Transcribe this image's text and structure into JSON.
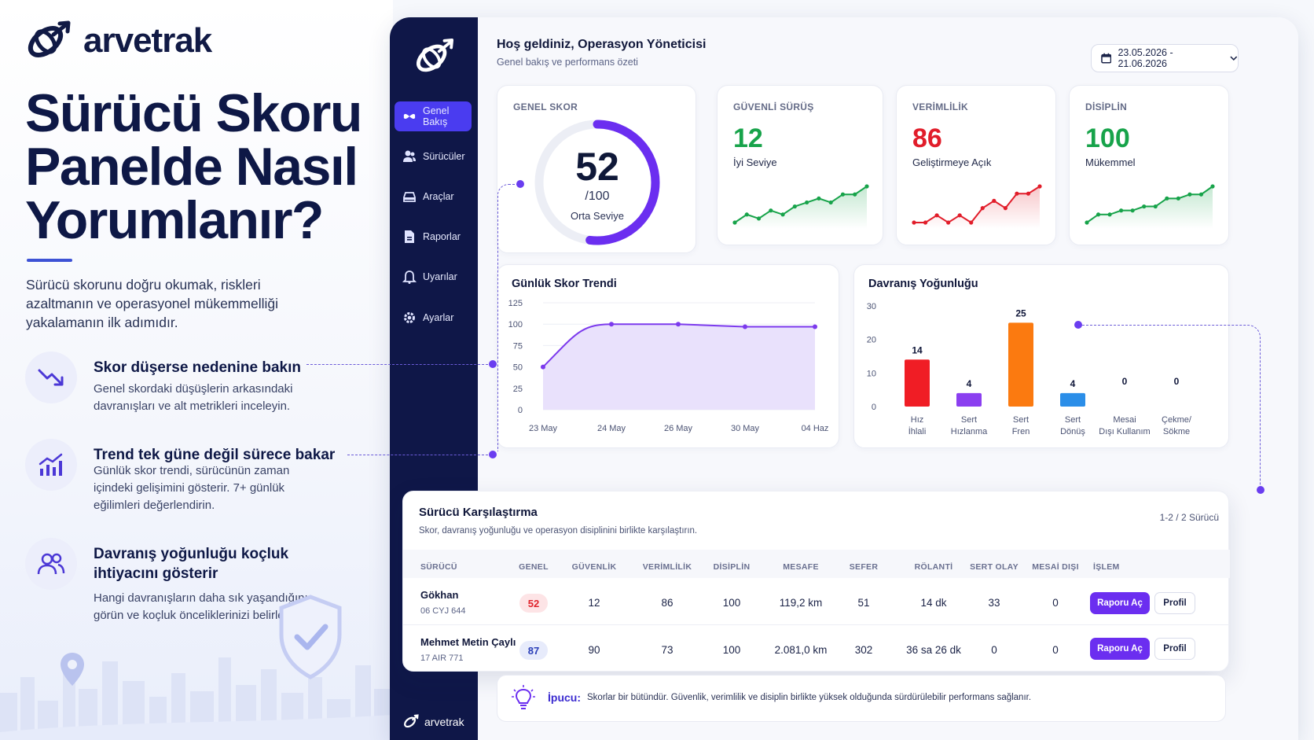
{
  "brand": {
    "name": "arvetrak"
  },
  "hero": {
    "title": "Sürücü Skoru Panelde Nasıl Yorumlanır?",
    "subtitle": "Sürücü skorunu doğru okumak, riskleri azaltmanın ve operasyonel mükemmelliği yakalamanın ilk adımıdır."
  },
  "tips": [
    {
      "title": "Skor düşerse nedenine bakın",
      "desc": "Genel skordaki düşüşlerin arkasındaki davranışları ve alt metrikleri inceleyin.",
      "icon": "trend-down-icon"
    },
    {
      "title": "Trend tek güne değil sürece bakar",
      "desc": "Günlük skor trendi, sürücünün zaman içindeki gelişimini gösterir. 7+ günlük eğilimleri değerlendirin.",
      "icon": "bar-chart-icon"
    },
    {
      "title": "Davranış yoğunluğu koçluk ihtiyacını gösterir",
      "desc": "Hangi davranışların daha sık yaşandığını görün ve koçluk önceliklerinizi belirleyin.",
      "icon": "users-icon"
    }
  ],
  "sidebar": {
    "items": [
      {
        "label": "Genel Bakış",
        "icon": "dashboard-icon"
      },
      {
        "label": "Sürücüler",
        "icon": "drivers-icon"
      },
      {
        "label": "Araçlar",
        "icon": "car-icon"
      },
      {
        "label": "Raporlar",
        "icon": "report-icon"
      },
      {
        "label": "Uyarılar",
        "icon": "bell-icon"
      },
      {
        "label": "Ayarlar",
        "icon": "gear-icon"
      }
    ],
    "footer": "arvetrak"
  },
  "header": {
    "greeting": "Hoş geldiniz, Operasyon Yöneticisi",
    "subtitle": "Genel bakış ve performans özeti",
    "date_range": "23.05.2026 - 21.06.2026"
  },
  "general_score": {
    "label": "GENEL SKOR",
    "value": "52",
    "max": "/100",
    "level": "Orta Seviye",
    "fraction": 0.52
  },
  "kpis": [
    {
      "label": "GÜVENLİ SÜRÜŞ",
      "value": "12",
      "status": "İyi Seviye",
      "color": "#17a34a",
      "spark": [
        2,
        4,
        3,
        5,
        4,
        6,
        7,
        8,
        7,
        9,
        9,
        11
      ]
    },
    {
      "label": "VERİMLİLİK",
      "value": "86",
      "status": "Geliştirmeye Açık",
      "color": "#e11d2a",
      "spark": [
        3,
        3,
        4,
        3,
        4,
        3,
        5,
        6,
        5,
        7,
        7,
        8
      ]
    },
    {
      "label": "DİSİPLİN",
      "value": "100",
      "status": "Mükemmel",
      "color": "#17a34a",
      "spark": [
        2,
        4,
        4,
        5,
        5,
        6,
        6,
        8,
        8,
        9,
        9,
        11
      ]
    }
  ],
  "trend": {
    "title": "Günlük Skor Trendi"
  },
  "behavior": {
    "title": "Davranış Yoğunluğu"
  },
  "chart_data": [
    {
      "type": "area",
      "title": "Günlük Skor Trendi",
      "x": [
        "23 May",
        "24 May",
        "26 May",
        "30 May",
        "04 Haz"
      ],
      "values": [
        50,
        100,
        100,
        97,
        97
      ],
      "yticks": [
        0,
        25,
        50,
        75,
        100,
        125
      ],
      "ylim": [
        0,
        125
      ],
      "color": "#7c3aed"
    },
    {
      "type": "bar",
      "title": "Davranış Yoğunluğu",
      "categories": [
        "Hız İhlali",
        "Sert Hızlanma",
        "Sert Fren",
        "Sert Dönüş",
        "Mesai Dışı Kullanım",
        "Çekme/ Sökme"
      ],
      "values": [
        14,
        4,
        25,
        4,
        0,
        0
      ],
      "colors": [
        "#f01d25",
        "#8b3ff0",
        "#fb7a10",
        "#2b8ee8",
        "#999999",
        "#999999"
      ],
      "yticks": [
        0,
        10,
        20,
        30
      ],
      "ylim": [
        0,
        30
      ]
    }
  ],
  "table": {
    "title": "Sürücü Karşılaştırma",
    "subtitle": "Skor, davranış yoğunluğu ve operasyon disiplinini birlikte karşılaştırın.",
    "count": "1-2 / 2 Sürücü",
    "columns": [
      "SÜRÜCÜ",
      "GENEL",
      "GÜVENLİK",
      "VERİMLİLİK",
      "DİSİPLİN",
      "MESAFE",
      "SEFER",
      "RÖLANTİ",
      "SERT OLAY",
      "MESAİ DIŞI",
      "İŞLEM"
    ],
    "rows": [
      {
        "name": "Gökhan",
        "plate": "06 CYJ 644",
        "genel": "52",
        "guvenlik": "12",
        "verimlilik": "86",
        "disiplin": "100",
        "mesafe": "119,2 km",
        "sefer": "51",
        "rolanti": "14 dk",
        "sert_olay": "33",
        "mesai_disi": "0",
        "genel_color": "#e0242d",
        "genel_bg": "#fde4e6"
      },
      {
        "name": "Mehmet Metin Çaylı",
        "plate": "17 AIR 771",
        "genel": "87",
        "guvenlik": "90",
        "verimlilik": "73",
        "disiplin": "100",
        "mesafe": "2.081,0 km",
        "sefer": "302",
        "rolanti": "36 sa 26 dk",
        "sert_olay": "0",
        "mesai_disi": "0",
        "genel_color": "#2b3fb8",
        "genel_bg": "#e7ebfb"
      }
    ],
    "btn_report": "Raporu Aç",
    "btn_profile": "Profil"
  },
  "tip_bar": {
    "label": "İpucu:",
    "text": "Skorlar bir bütündür. Güvenlik, verimlilik ve disiplin birlikte yüksek olduğunda sürdürülebilir performans sağlanır."
  }
}
